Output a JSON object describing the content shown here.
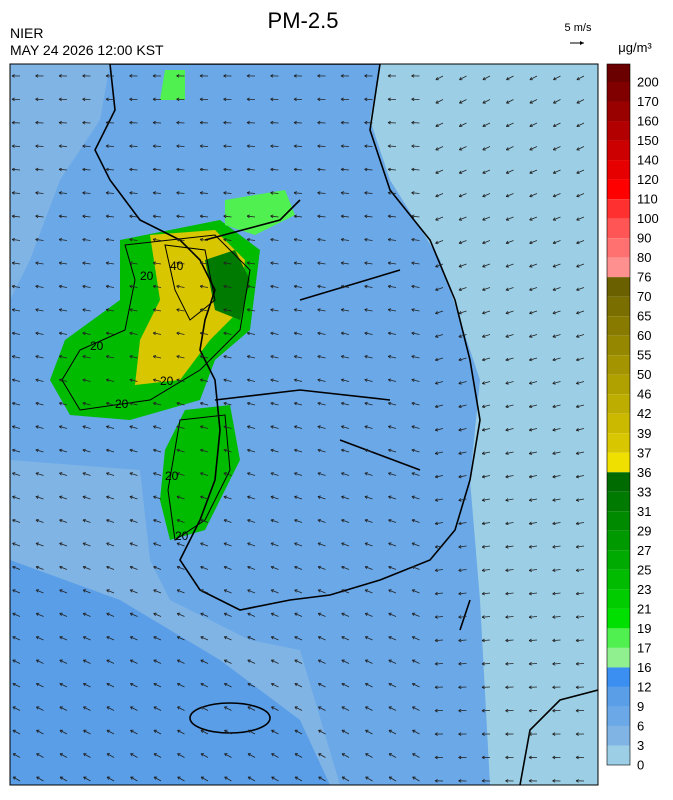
{
  "header": {
    "title": "PM-2.5",
    "agency": "NIER",
    "timestamp": "MAY 24 2026 12:00 KST",
    "wind_scale": "5 m/s",
    "unit": "μg/m³"
  },
  "colorbar": {
    "labels": [
      200,
      170,
      160,
      150,
      140,
      120,
      110,
      100,
      90,
      80,
      76,
      70,
      65,
      60,
      55,
      50,
      46,
      42,
      39,
      37,
      36,
      33,
      31,
      29,
      27,
      25,
      23,
      21,
      19,
      17,
      16,
      12,
      9,
      6,
      3,
      0
    ],
    "colors": [
      "#6b0000",
      "#800000",
      "#990000",
      "#b20000",
      "#cc0000",
      "#e60000",
      "#ff0000",
      "#ff3030",
      "#ff5555",
      "#ff7070",
      "#ff9090",
      "#6b6000",
      "#7a6e00",
      "#887a00",
      "#968700",
      "#a39400",
      "#b0a000",
      "#bdad00",
      "#cbb900",
      "#d8c600",
      "#f0e000",
      "#006b00",
      "#007a00",
      "#008a00",
      "#009900",
      "#00aa00",
      "#00bb00",
      "#00cc00",
      "#00e000",
      "#50f050",
      "#90f090",
      "#3a8ff0",
      "#5a9ee8",
      "#6aa8e8",
      "#80b4e4",
      "#9ccfe6"
    ]
  },
  "map": {
    "contour_labels": [
      20,
      40,
      20,
      20,
      20,
      20,
      20
    ]
  }
}
